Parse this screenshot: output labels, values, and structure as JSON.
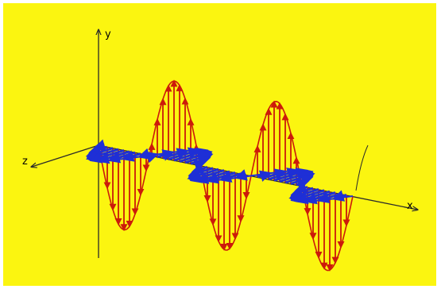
{
  "axes": {
    "y_label": "y",
    "z_label": "z",
    "x_label": "x"
  },
  "colors": {
    "background": "#fbf510",
    "electric_field": "#cc1a0a",
    "magnetic_field": "#1e2fd6",
    "axis": "#2a2a2a"
  },
  "icons": {
    "electric_arrows": "red-vertical-arrows",
    "magnetic_arrows": "blue-horizontal-arrows"
  }
}
